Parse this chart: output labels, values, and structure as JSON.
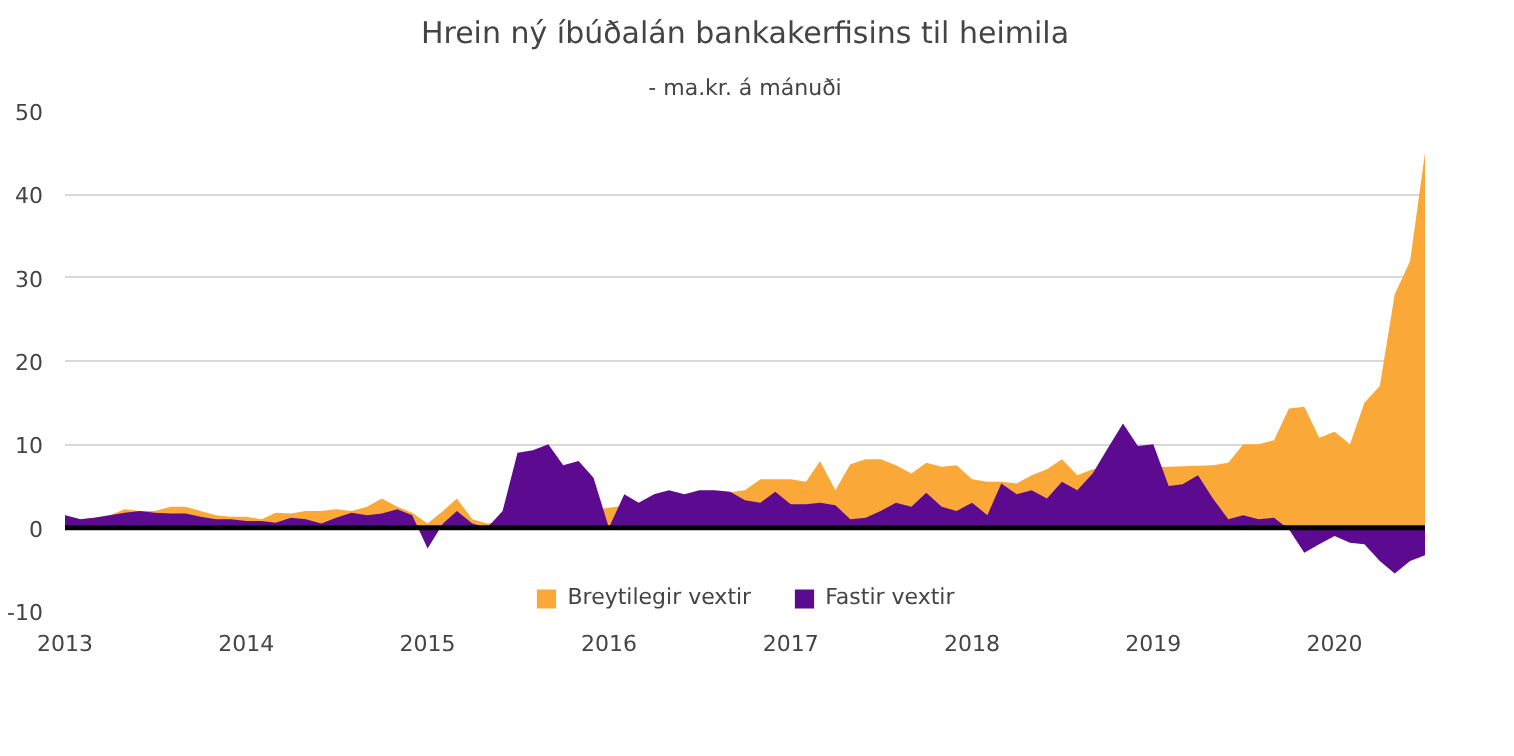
{
  "chart_data": {
    "type": "area",
    "title": "Hrein ný íbúðalán bankakerfisins til heimila",
    "subtitle": "- ma.kr. á mánuði",
    "x": [
      "2013-01",
      "2013-02",
      "2013-03",
      "2013-04",
      "2013-05",
      "2013-06",
      "2013-07",
      "2013-08",
      "2013-09",
      "2013-10",
      "2013-11",
      "2013-12",
      "2014-01",
      "2014-02",
      "2014-03",
      "2014-04",
      "2014-05",
      "2014-06",
      "2014-07",
      "2014-08",
      "2014-09",
      "2014-10",
      "2014-11",
      "2014-12",
      "2015-01",
      "2015-02",
      "2015-03",
      "2015-04",
      "2015-05",
      "2015-06",
      "2015-07",
      "2015-08",
      "2015-09",
      "2015-10",
      "2015-11",
      "2015-12",
      "2016-01",
      "2016-02",
      "2016-03",
      "2016-04",
      "2016-05",
      "2016-06",
      "2016-07",
      "2016-08",
      "2016-09",
      "2016-10",
      "2016-11",
      "2016-12",
      "2017-01",
      "2017-02",
      "2017-03",
      "2017-04",
      "2017-05",
      "2017-06",
      "2017-07",
      "2017-08",
      "2017-09",
      "2017-10",
      "2017-11",
      "2017-12",
      "2018-01",
      "2018-02",
      "2018-03",
      "2018-04",
      "2018-05",
      "2018-06",
      "2018-07",
      "2018-08",
      "2018-09",
      "2018-10",
      "2018-11",
      "2018-12",
      "2019-01",
      "2019-02",
      "2019-03",
      "2019-04",
      "2019-05",
      "2019-06",
      "2019-07",
      "2019-08",
      "2019-09",
      "2019-10",
      "2019-11",
      "2019-12",
      "2020-01",
      "2020-02",
      "2020-03",
      "2020-04",
      "2020-05",
      "2020-06",
      "2020-07"
    ],
    "series": [
      {
        "name": "Breytilegir vextir",
        "color": "#faa938",
        "values": [
          1.5,
          1,
          1.2,
          1.5,
          2.2,
          2,
          2,
          2.5,
          2.5,
          2,
          1.5,
          1.3,
          1.3,
          1,
          1.8,
          1.7,
          2,
          2,
          2.2,
          2,
          2.5,
          3.5,
          2.5,
          1.8,
          0.5,
          2,
          3.5,
          1,
          0.5,
          null,
          null,
          null,
          null,
          null,
          null,
          null,
          null,
          null,
          null,
          null,
          null,
          null,
          null,
          null,
          null,
          4.5,
          5.8,
          5.8,
          5.8,
          5.5,
          8,
          4.5,
          7.6,
          8.2,
          8.2,
          7.5,
          6.5,
          7.8,
          7.3,
          7.5,
          5.8,
          5.5,
          5.5,
          5.3,
          6.3,
          7,
          8.2,
          6.3,
          7,
          null,
          null,
          null,
          null,
          null,
          null,
          null,
          7.5,
          7.8,
          10,
          10,
          10.5,
          14.3,
          14.5,
          10.8,
          11.5,
          10,
          15,
          17,
          28,
          32,
          45
        ]
      },
      {
        "name": "Fastir vextir",
        "color": "#5c0a8f",
        "values": [
          1.5,
          1,
          1.2,
          1.5,
          1.8,
          2,
          1.8,
          1.7,
          1.7,
          1.3,
          1,
          1,
          0.8,
          0.8,
          0.6,
          1.2,
          1,
          0.5,
          1.2,
          1.8,
          1.5,
          1.7,
          2.2,
          1.5,
          -2.5,
          0.5,
          2,
          0.5,
          0,
          2,
          9,
          9.3,
          10,
          7.5,
          8,
          6,
          0,
          4,
          3,
          4,
          4.5,
          4,
          4.5,
          4.5,
          4.3,
          3.3,
          3,
          4.3,
          2.8,
          2.8,
          3,
          2.7,
          1,
          1.2,
          2,
          3,
          2.5,
          4.2,
          2.5,
          2,
          3,
          1.5,
          5.3,
          4,
          4.5,
          3.5,
          5.5,
          4.5,
          6.5,
          9.5,
          12.5,
          9.8,
          10,
          5,
          5.2,
          6.3,
          3.5,
          1,
          1.5,
          1,
          1.2,
          -0.2,
          -3,
          -2,
          -1,
          -1.8,
          -2,
          -4,
          -5.5,
          -4,
          -3.3
        ]
      }
    ],
    "xlim": [
      "2013-01",
      "2020-07"
    ],
    "xticks": [
      "2013",
      "2014",
      "2015",
      "2016",
      "2017",
      "2018",
      "2019",
      "2020"
    ],
    "ylim": [
      -10,
      50
    ],
    "yticks": [
      -10,
      0,
      10,
      20,
      30,
      40,
      50
    ],
    "ref_lines": [
      {
        "axis": "y",
        "value": 0,
        "color": "#000000"
      }
    ],
    "grid": "y",
    "legend": "bottom"
  }
}
